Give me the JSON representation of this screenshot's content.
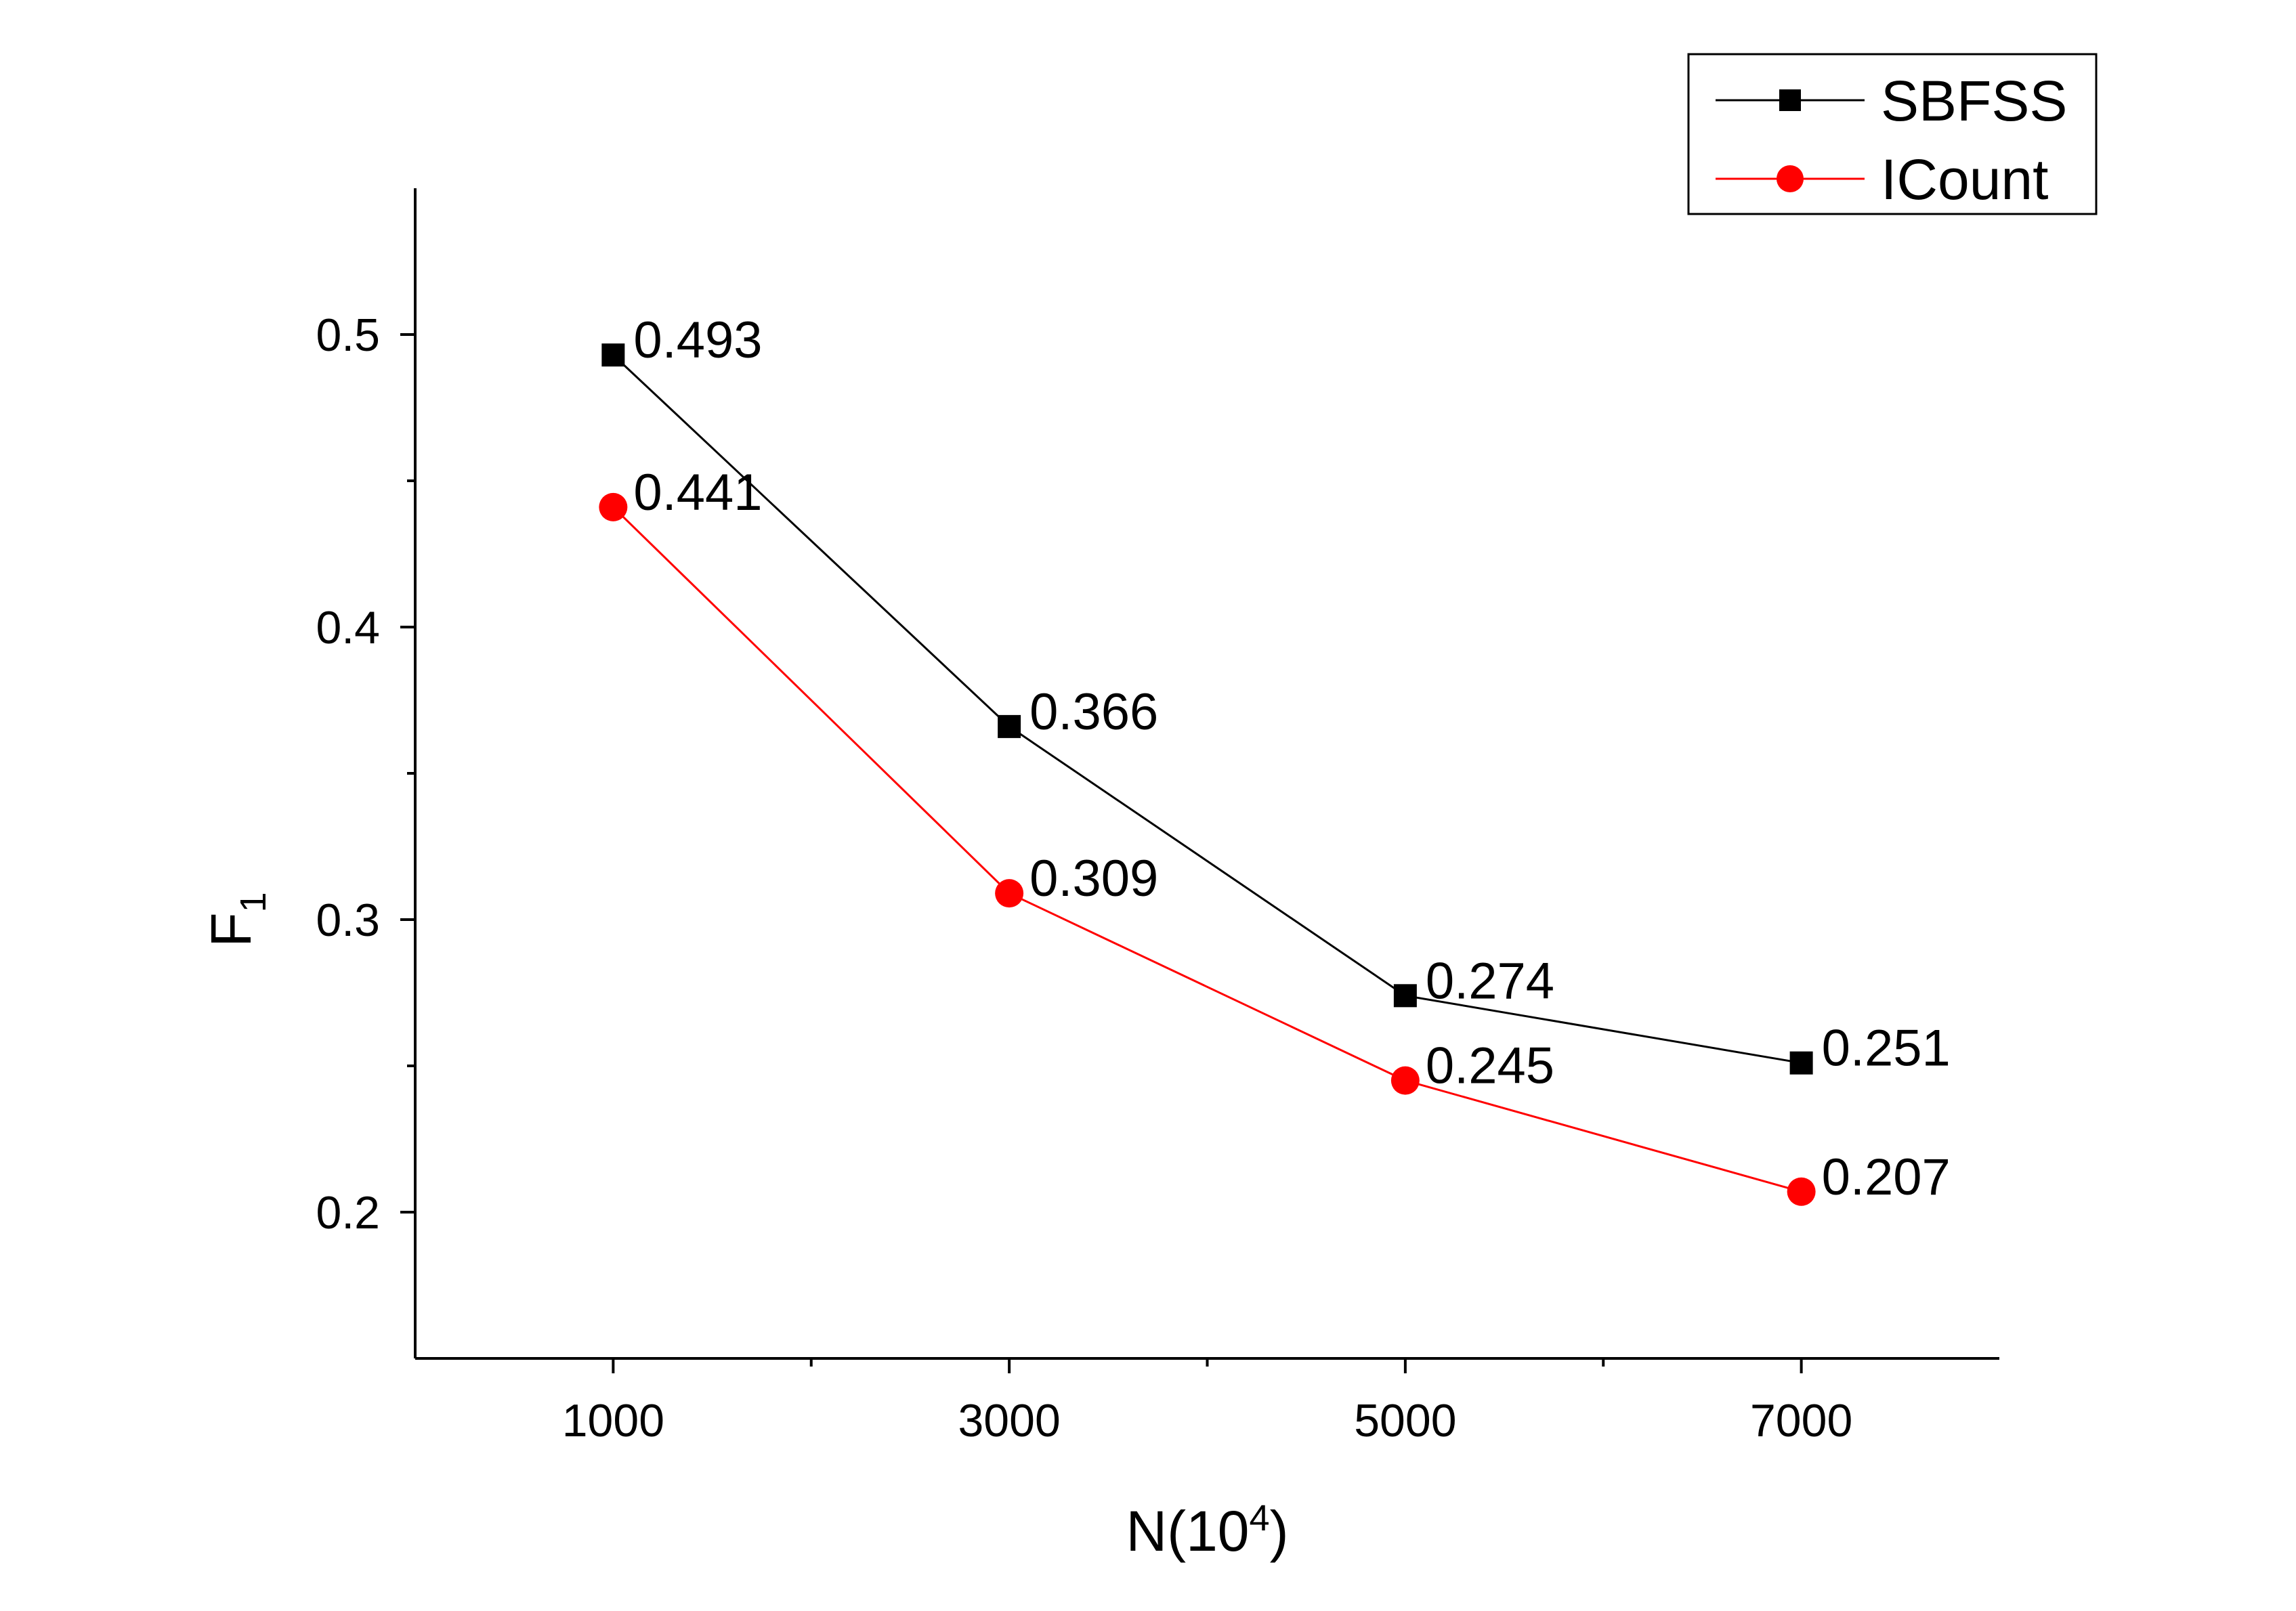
{
  "chart_data": {
    "type": "line",
    "title": "",
    "xlabel": "N(10",
    "xlabel_sup": "4",
    "xlabel_suffix": ")",
    "ylabel": "F",
    "ylabel_sub": "1",
    "x": [
      1000,
      3000,
      5000,
      7000
    ],
    "xlim": [
      0,
      8000
    ],
    "ylim": [
      0.15,
      0.55
    ],
    "x_ticks": [
      1000,
      3000,
      5000,
      7000
    ],
    "x_tick_labels": [
      "1000",
      "3000",
      "5000",
      "7000"
    ],
    "x_minor_ticks": [
      2000,
      4000,
      6000
    ],
    "y_ticks": [
      0.2,
      0.3,
      0.4,
      0.5
    ],
    "y_tick_labels": [
      "0.2",
      "0.3",
      "0.4",
      "0.5"
    ],
    "y_minor_ticks": [
      0.25,
      0.35,
      0.45
    ],
    "grid": false,
    "legend_position": "top-right",
    "series": [
      {
        "name": "SBFSS",
        "marker": "square",
        "color": "#000000",
        "values": [
          0.493,
          0.366,
          0.274,
          0.251
        ],
        "labels": [
          "0.493",
          "0.366",
          "0.274",
          "0.251"
        ]
      },
      {
        "name": "ICount",
        "marker": "circle",
        "color": "#ff0000",
        "values": [
          0.441,
          0.309,
          0.245,
          0.207
        ],
        "labels": [
          "0.441",
          "0.309",
          "0.245",
          "0.207"
        ]
      }
    ]
  }
}
